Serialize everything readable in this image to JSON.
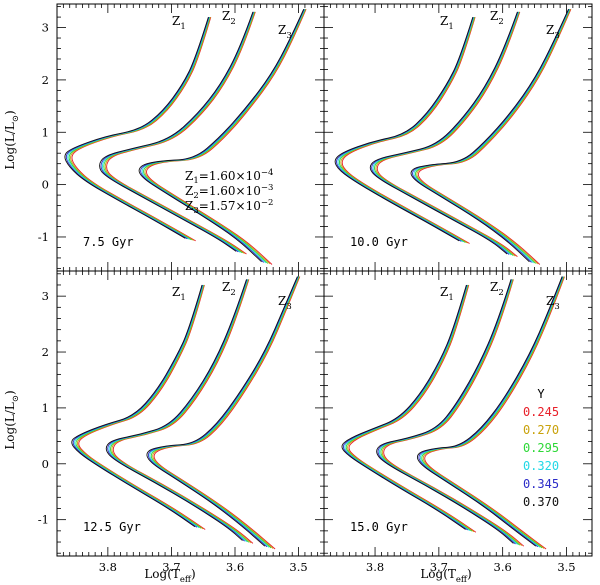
{
  "chart_data": {
    "type": "line",
    "xlabel": "Log(T",
    "xlabel_sub": "eff",
    "xlabel_close": ")",
    "ylabel": "Log(L/L",
    "ylabel_sub": "⊙",
    "ylabel_close": ")",
    "xlim": [
      3.88,
      3.46
    ],
    "ylim": [
      -1.65,
      3.45
    ],
    "x_ticks": [
      3.8,
      3.7,
      3.6,
      3.5
    ],
    "x_tick_labels": [
      "3.8",
      "3.7",
      "3.6",
      "3.5"
    ],
    "y_ticks": [
      -1,
      0,
      1,
      2,
      3
    ],
    "y_tick_labels": [
      "-1",
      "0",
      "1",
      "2",
      "3"
    ],
    "grid": false,
    "legend_position": "bottom-right of last panel",
    "legend_title": "Y",
    "helium_Y": [
      {
        "label": "0.245",
        "color": "#e8202a"
      },
      {
        "label": "0.270",
        "color": "#c9a20c"
      },
      {
        "label": "0.295",
        "color": "#2ed838"
      },
      {
        "label": "0.320",
        "color": "#22d8e6"
      },
      {
        "label": "0.345",
        "color": "#2c2cc8"
      },
      {
        "label": "0.370",
        "color": "#111111"
      }
    ],
    "metallicity_labels": {
      "z1": "Z",
      "z1_sub": "1",
      "z2": "Z",
      "z2_sub": "2",
      "z3": "Z",
      "z3_sub": "3"
    },
    "metallicity_values": [
      {
        "name": "Z",
        "sub": "1",
        "value": "=1.60×10",
        "exp": "−4"
      },
      {
        "name": "Z",
        "sub": "2",
        "value": "=1.60×10",
        "exp": "−3"
      },
      {
        "name": "Z",
        "sub": "3",
        "value": "=1.57×10",
        "exp": "−2"
      }
    ],
    "panels": [
      {
        "age_label": "7.5 Gyr",
        "isochrones": [
          {
            "Z": "Z1",
            "points": [
              [
                3.64,
                3.2
              ],
              [
                3.66,
                2.4
              ],
              [
                3.68,
                1.9
              ],
              [
                3.71,
                1.4
              ],
              [
                3.745,
                1.05
              ],
              [
                3.8,
                0.92
              ],
              [
                3.85,
                0.7
              ],
              [
                3.865,
                0.55
              ],
              [
                3.855,
                0.32
              ],
              [
                3.83,
                0.05
              ],
              [
                3.78,
                -0.3
              ],
              [
                3.72,
                -0.7
              ],
              [
                3.67,
                -1.05
              ]
            ]
          },
          {
            "Z": "Z2",
            "points": [
              [
                3.57,
                3.3
              ],
              [
                3.59,
                2.6
              ],
              [
                3.62,
                1.9
              ],
              [
                3.655,
                1.35
              ],
              [
                3.7,
                0.85
              ],
              [
                3.76,
                0.68
              ],
              [
                3.8,
                0.55
              ],
              [
                3.81,
                0.35
              ],
              [
                3.8,
                0.15
              ],
              [
                3.74,
                -0.25
              ],
              [
                3.68,
                -0.65
              ],
              [
                3.62,
                -1.05
              ],
              [
                3.59,
                -1.3
              ]
            ]
          },
          {
            "Z": "Z3",
            "points": [
              [
                3.49,
                3.35
              ],
              [
                3.51,
                2.8
              ],
              [
                3.54,
                2.1
              ],
              [
                3.58,
                1.45
              ],
              [
                3.62,
                0.9
              ],
              [
                3.66,
                0.48
              ],
              [
                3.715,
                0.45
              ],
              [
                3.745,
                0.35
              ],
              [
                3.745,
                0.15
              ],
              [
                3.7,
                -0.2
              ],
              [
                3.64,
                -0.65
              ],
              [
                3.59,
                -1.05
              ],
              [
                3.55,
                -1.5
              ]
            ]
          }
        ]
      },
      {
        "age_label": "10.0 Gyr",
        "isochrones": [
          {
            "Z": "Z1",
            "points": [
              [
                3.645,
                3.2
              ],
              [
                3.665,
                2.4
              ],
              [
                3.685,
                1.9
              ],
              [
                3.715,
                1.35
              ],
              [
                3.75,
                0.95
              ],
              [
                3.8,
                0.82
              ],
              [
                3.845,
                0.62
              ],
              [
                3.86,
                0.45
              ],
              [
                3.85,
                0.25
              ],
              [
                3.82,
                0.0
              ],
              [
                3.77,
                -0.35
              ],
              [
                3.71,
                -0.75
              ],
              [
                3.66,
                -1.1
              ]
            ]
          },
          {
            "Z": "Z2",
            "points": [
              [
                3.575,
                3.3
              ],
              [
                3.595,
                2.6
              ],
              [
                3.625,
                1.85
              ],
              [
                3.66,
                1.25
              ],
              [
                3.7,
                0.75
              ],
              [
                3.75,
                0.6
              ],
              [
                3.795,
                0.48
              ],
              [
                3.805,
                0.3
              ],
              [
                3.79,
                0.1
              ],
              [
                3.73,
                -0.3
              ],
              [
                3.67,
                -0.7
              ],
              [
                3.61,
                -1.1
              ],
              [
                3.585,
                -1.35
              ]
            ]
          },
          {
            "Z": "Z3",
            "points": [
              [
                3.495,
                3.35
              ],
              [
                3.515,
                2.8
              ],
              [
                3.545,
                2.05
              ],
              [
                3.585,
                1.35
              ],
              [
                3.625,
                0.8
              ],
              [
                3.66,
                0.42
              ],
              [
                3.71,
                0.38
              ],
              [
                3.74,
                0.28
              ],
              [
                3.735,
                0.08
              ],
              [
                3.69,
                -0.25
              ],
              [
                3.63,
                -0.7
              ],
              [
                3.585,
                -1.1
              ],
              [
                3.55,
                -1.5
              ]
            ]
          }
        ]
      },
      {
        "age_label": "12.5 Gyr",
        "isochrones": [
          {
            "Z": "Z1",
            "points": [
              [
                3.65,
                3.2
              ],
              [
                3.67,
                2.4
              ],
              [
                3.69,
                1.9
              ],
              [
                3.72,
                1.3
              ],
              [
                3.755,
                0.85
              ],
              [
                3.8,
                0.7
              ],
              [
                3.84,
                0.52
              ],
              [
                3.855,
                0.38
              ],
              [
                3.84,
                0.18
              ],
              [
                3.81,
                -0.05
              ],
              [
                3.76,
                -0.4
              ],
              [
                3.7,
                -0.8
              ],
              [
                3.655,
                -1.15
              ]
            ]
          },
          {
            "Z": "Z2",
            "points": [
              [
                3.58,
                3.3
              ],
              [
                3.6,
                2.6
              ],
              [
                3.63,
                1.8
              ],
              [
                3.665,
                1.15
              ],
              [
                3.7,
                0.68
              ],
              [
                3.745,
                0.52
              ],
              [
                3.79,
                0.42
              ],
              [
                3.8,
                0.25
              ],
              [
                3.785,
                0.05
              ],
              [
                3.72,
                -0.35
              ],
              [
                3.66,
                -0.75
              ],
              [
                3.605,
                -1.15
              ],
              [
                3.58,
                -1.4
              ]
            ]
          },
          {
            "Z": "Z3",
            "points": [
              [
                3.5,
                3.35
              ],
              [
                3.52,
                2.8
              ],
              [
                3.55,
                2.0
              ],
              [
                3.59,
                1.25
              ],
              [
                3.625,
                0.7
              ],
              [
                3.66,
                0.35
              ],
              [
                3.705,
                0.32
              ],
              [
                3.735,
                0.22
              ],
              [
                3.73,
                0.02
              ],
              [
                3.685,
                -0.3
              ],
              [
                3.625,
                -0.75
              ],
              [
                3.58,
                -1.15
              ],
              [
                3.545,
                -1.5
              ]
            ]
          }
        ]
      },
      {
        "age_label": "15.0 Gyr",
        "isochrones": [
          {
            "Z": "Z1",
            "points": [
              [
                3.655,
                3.2
              ],
              [
                3.675,
                2.4
              ],
              [
                3.695,
                1.85
              ],
              [
                3.725,
                1.25
              ],
              [
                3.76,
                0.8
              ],
              [
                3.8,
                0.62
              ],
              [
                3.835,
                0.45
              ],
              [
                3.85,
                0.3
              ],
              [
                3.835,
                0.12
              ],
              [
                3.805,
                -0.1
              ],
              [
                3.755,
                -0.45
              ],
              [
                3.695,
                -0.85
              ],
              [
                3.65,
                -1.2
              ]
            ]
          },
          {
            "Z": "Z2",
            "points": [
              [
                3.585,
                3.3
              ],
              [
                3.605,
                2.55
              ],
              [
                3.635,
                1.75
              ],
              [
                3.67,
                1.05
              ],
              [
                3.7,
                0.62
              ],
              [
                3.745,
                0.45
              ],
              [
                3.785,
                0.36
              ],
              [
                3.795,
                0.2
              ],
              [
                3.78,
                0.0
              ],
              [
                3.715,
                -0.4
              ],
              [
                3.655,
                -0.8
              ],
              [
                3.6,
                -1.2
              ],
              [
                3.575,
                -1.45
              ]
            ]
          },
          {
            "Z": "Z3",
            "points": [
              [
                3.505,
                3.35
              ],
              [
                3.525,
                2.75
              ],
              [
                3.555,
                1.95
              ],
              [
                3.595,
                1.15
              ],
              [
                3.63,
                0.62
              ],
              [
                3.665,
                0.3
              ],
              [
                3.7,
                0.28
              ],
              [
                3.73,
                0.18
              ],
              [
                3.725,
                -0.02
              ],
              [
                3.68,
                -0.35
              ],
              [
                3.62,
                -0.8
              ],
              [
                3.575,
                -1.2
              ],
              [
                3.54,
                -1.5
              ]
            ]
          }
        ]
      }
    ]
  }
}
